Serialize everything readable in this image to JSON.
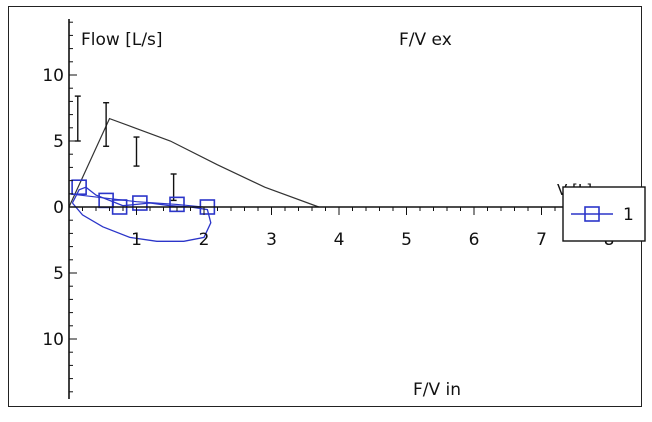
{
  "chart_data": {
    "type": "line",
    "ylabel": "Flow [L/s]",
    "xlabel": "V [L]",
    "annotation_top": "F/V ex",
    "annotation_bottom": "F/V in",
    "xlim": [
      0,
      8
    ],
    "ylim": [
      -14.5,
      14.5
    ],
    "x_ticks": [
      1,
      2,
      3,
      4,
      5,
      6,
      7,
      8
    ],
    "y_ticks": [
      {
        "value": 10,
        "label": "10"
      },
      {
        "value": 5,
        "label": "5"
      },
      {
        "value": 0,
        "label": "0"
      },
      {
        "value": -5,
        "label": "5"
      },
      {
        "value": -10,
        "label": "10"
      }
    ],
    "predicted_curve_expiratory": [
      [
        0.0,
        0.0
      ],
      [
        0.6,
        6.7
      ],
      [
        1.5,
        5.0
      ],
      [
        2.2,
        3.2
      ],
      [
        2.9,
        1.5
      ],
      [
        3.7,
        0.0
      ]
    ],
    "error_bars": [
      {
        "x": 0.13,
        "y": 6.6,
        "low": 5.0,
        "high": 8.4
      },
      {
        "x": 0.55,
        "y": 6.0,
        "low": 4.6,
        "high": 7.9
      },
      {
        "x": 1.0,
        "y": 3.9,
        "low": 3.1,
        "high": 5.3
      },
      {
        "x": 1.55,
        "y": 1.5,
        "low": 0.5,
        "high": 2.5
      }
    ],
    "series": [
      {
        "name": "1",
        "color": "#2b35c9",
        "marker": "square",
        "values": [
          [
            0.05,
            0.3
          ],
          [
            0.15,
            1.3
          ],
          [
            0.25,
            1.5
          ],
          [
            0.4,
            0.9
          ],
          [
            0.6,
            0.5
          ],
          [
            0.8,
            0.1
          ],
          [
            1.0,
            0.2
          ],
          [
            1.2,
            0.3
          ],
          [
            1.5,
            0.1
          ],
          [
            1.8,
            0.0
          ],
          [
            2.05,
            -0.2
          ],
          [
            2.1,
            -1.2
          ],
          [
            2.0,
            -2.3
          ],
          [
            1.7,
            -2.6
          ],
          [
            1.3,
            -2.6
          ],
          [
            0.9,
            -2.3
          ],
          [
            0.5,
            -1.5
          ],
          [
            0.2,
            -0.6
          ],
          [
            0.05,
            0.3
          ]
        ],
        "marker_points": [
          [
            0.15,
            1.5
          ],
          [
            0.55,
            0.5
          ],
          [
            0.75,
            0.0
          ],
          [
            1.05,
            0.3
          ],
          [
            1.6,
            0.2
          ],
          [
            2.05,
            0.0
          ]
        ],
        "extra_curve": [
          [
            0.0,
            1.0
          ],
          [
            0.5,
            0.7
          ],
          [
            1.0,
            0.4
          ],
          [
            1.6,
            0.2
          ],
          [
            2.0,
            0.0
          ]
        ]
      }
    ],
    "legend": {
      "position": "right",
      "entries": [
        "1"
      ]
    }
  }
}
